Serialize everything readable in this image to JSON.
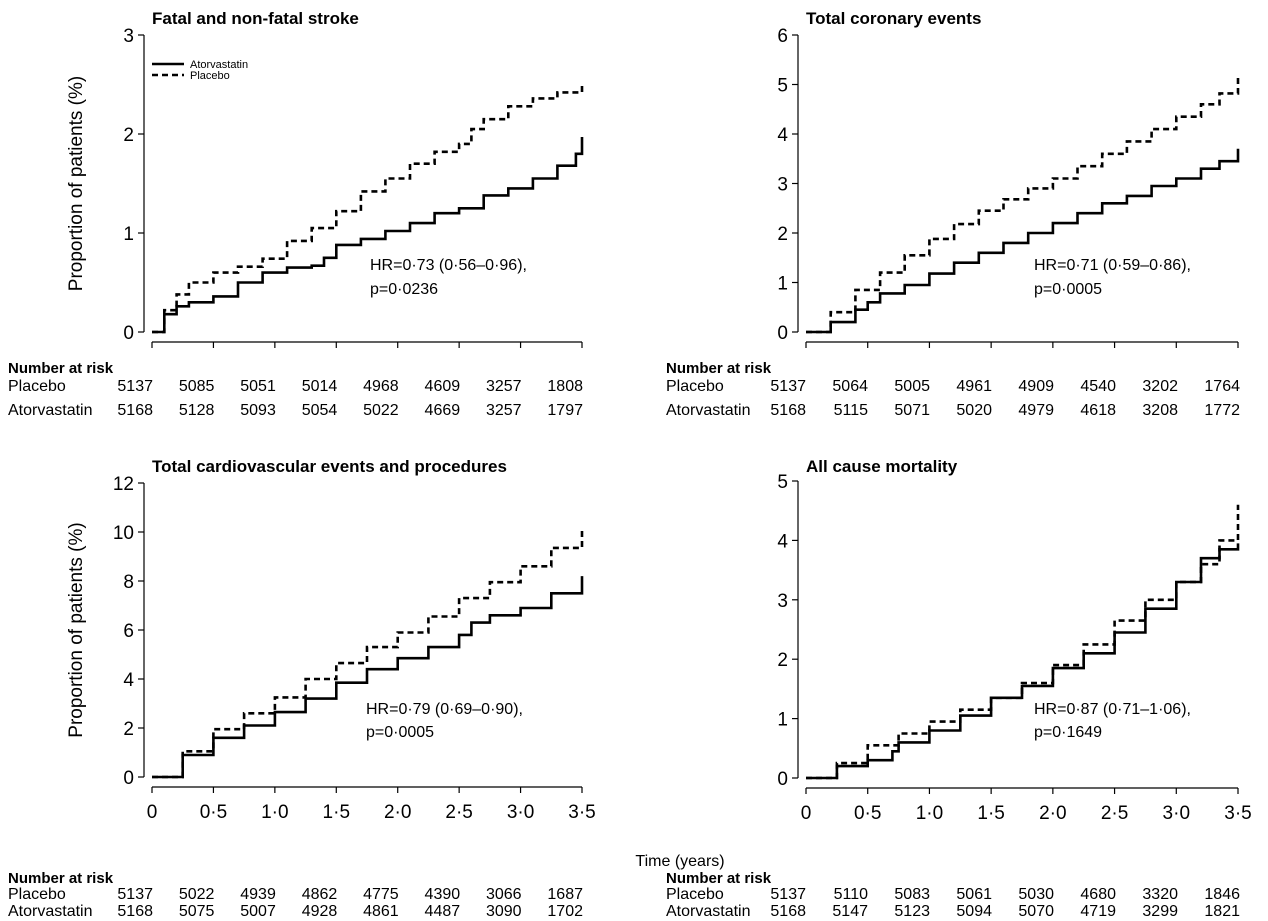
{
  "figure": {
    "x_axis_label": "Time (years)",
    "y_axis_label": "Proportion of patients (%)",
    "legend": {
      "placement": "top-left of first panel",
      "items": [
        {
          "label": "Atorvastatin",
          "style": "solid"
        },
        {
          "label": "Placebo",
          "style": "dashed"
        }
      ]
    },
    "risk_table_title": "Number at risk",
    "risk_row_labels": [
      "Placebo",
      "Atorvastatin"
    ],
    "line_color": "#000000"
  },
  "chart_data": [
    {
      "type": "line",
      "title": "Fatal and non-fatal stroke",
      "ylabel": "Proportion of patients (%)",
      "xlim": [
        0,
        3.5
      ],
      "ylim": [
        0,
        3
      ],
      "yticks": [
        "0",
        "1",
        "2",
        "3"
      ],
      "xticks": [],
      "annotation": [
        "HR=0·73 (0·56–0·96),",
        "p=0·0236"
      ],
      "series": [
        {
          "name": "Atorvastatin",
          "style": "solid",
          "x": [
            0,
            0.1,
            0.2,
            0.3,
            0.5,
            0.7,
            0.9,
            1.1,
            1.3,
            1.4,
            1.5,
            1.7,
            1.9,
            2.1,
            2.3,
            2.5,
            2.7,
            2.9,
            3.1,
            3.3,
            3.45,
            3.5
          ],
          "y": [
            0,
            0.18,
            0.26,
            0.3,
            0.36,
            0.5,
            0.6,
            0.65,
            0.67,
            0.75,
            0.88,
            0.94,
            1.02,
            1.1,
            1.2,
            1.25,
            1.38,
            1.45,
            1.55,
            1.68,
            1.8,
            1.97
          ]
        },
        {
          "name": "Placebo",
          "style": "dashed",
          "x": [
            0,
            0.1,
            0.2,
            0.3,
            0.5,
            0.7,
            0.9,
            1.1,
            1.3,
            1.5,
            1.7,
            1.9,
            2.1,
            2.3,
            2.5,
            2.6,
            2.7,
            2.9,
            3.1,
            3.3,
            3.5
          ],
          "y": [
            0,
            0.22,
            0.38,
            0.5,
            0.6,
            0.66,
            0.74,
            0.92,
            1.05,
            1.22,
            1.42,
            1.55,
            1.7,
            1.82,
            1.9,
            2.05,
            2.15,
            2.28,
            2.36,
            2.42,
            2.5
          ]
        }
      ],
      "risk_table": {
        "Placebo": [
          5137,
          5085,
          5051,
          5014,
          4968,
          4609,
          3257,
          1808
        ],
        "Atorvastatin": [
          5168,
          5128,
          5093,
          5054,
          5022,
          4669,
          3257,
          1797
        ]
      }
    },
    {
      "type": "line",
      "title": "Total coronary events",
      "ylabel": "",
      "xlim": [
        0,
        3.5
      ],
      "ylim": [
        0,
        6
      ],
      "yticks": [
        "0",
        "1",
        "2",
        "3",
        "4",
        "5",
        "6"
      ],
      "xticks": [],
      "annotation": [
        "HR=0·71 (0·59–0·86),",
        "p=0·0005"
      ],
      "series": [
        {
          "name": "Atorvastatin",
          "style": "solid",
          "x": [
            0,
            0.2,
            0.4,
            0.5,
            0.6,
            0.8,
            1.0,
            1.2,
            1.4,
            1.6,
            1.8,
            2.0,
            2.2,
            2.4,
            2.6,
            2.8,
            3.0,
            3.2,
            3.35,
            3.5
          ],
          "y": [
            0,
            0.2,
            0.45,
            0.6,
            0.78,
            0.95,
            1.18,
            1.4,
            1.6,
            1.8,
            2.0,
            2.2,
            2.4,
            2.6,
            2.75,
            2.95,
            3.1,
            3.3,
            3.45,
            3.7
          ]
        },
        {
          "name": "Placebo",
          "style": "dashed",
          "x": [
            0,
            0.2,
            0.4,
            0.6,
            0.8,
            1.0,
            1.2,
            1.4,
            1.6,
            1.8,
            2.0,
            2.2,
            2.4,
            2.6,
            2.8,
            3.0,
            3.2,
            3.35,
            3.5
          ],
          "y": [
            0,
            0.4,
            0.85,
            1.2,
            1.55,
            1.88,
            2.18,
            2.45,
            2.68,
            2.9,
            3.1,
            3.35,
            3.6,
            3.85,
            4.1,
            4.35,
            4.6,
            4.82,
            5.2
          ]
        }
      ],
      "risk_table": {
        "Placebo": [
          5137,
          5064,
          5005,
          4961,
          4909,
          4540,
          3202,
          1764
        ],
        "Atorvastatin": [
          5168,
          5115,
          5071,
          5020,
          4979,
          4618,
          3208,
          1772
        ]
      }
    },
    {
      "type": "line",
      "title": "Total cardiovascular events and procedures",
      "ylabel": "Proportion of patients (%)",
      "xlim": [
        0,
        3.5
      ],
      "ylim": [
        0,
        12
      ],
      "yticks": [
        "0",
        "2",
        "4",
        "6",
        "8",
        "10",
        "12"
      ],
      "xticks": [
        "0",
        "0·5",
        "1·0",
        "1·5",
        "2·0",
        "2·5",
        "3·0",
        "3·5"
      ],
      "annotation": [
        "HR=0·79 (0·69–0·90),",
        "p=0·0005"
      ],
      "series": [
        {
          "name": "Atorvastatin",
          "style": "solid",
          "x": [
            0,
            0.25,
            0.5,
            0.75,
            1.0,
            1.25,
            1.5,
            1.75,
            2.0,
            2.25,
            2.5,
            2.6,
            2.75,
            3.0,
            3.25,
            3.5
          ],
          "y": [
            0,
            0.9,
            1.6,
            2.1,
            2.65,
            3.2,
            3.85,
            4.4,
            4.85,
            5.3,
            5.8,
            6.3,
            6.6,
            6.9,
            7.5,
            8.2
          ]
        },
        {
          "name": "Placebo",
          "style": "dashed",
          "x": [
            0,
            0.25,
            0.5,
            0.75,
            1.0,
            1.25,
            1.5,
            1.75,
            2.0,
            2.25,
            2.5,
            2.75,
            3.0,
            3.25,
            3.5
          ],
          "y": [
            0,
            1.05,
            1.95,
            2.6,
            3.25,
            4.0,
            4.65,
            5.3,
            5.9,
            6.55,
            7.3,
            7.95,
            8.6,
            9.35,
            10.05
          ]
        }
      ],
      "risk_table": {
        "Placebo": [
          5137,
          5022,
          4939,
          4862,
          4775,
          4390,
          3066,
          1687
        ],
        "Atorvastatin": [
          5168,
          5075,
          5007,
          4928,
          4861,
          4487,
          3090,
          1702
        ]
      }
    },
    {
      "type": "line",
      "title": "All cause mortality",
      "ylabel": "",
      "xlim": [
        0,
        3.5
      ],
      "ylim": [
        0,
        5
      ],
      "yticks": [
        "0",
        "1",
        "2",
        "3",
        "4",
        "5"
      ],
      "xticks": [
        "0",
        "0·5",
        "1·0",
        "1·5",
        "2·0",
        "2·5",
        "3·0",
        "3·5"
      ],
      "annotation": [
        "HR=0·87 (0·71–1·06),",
        "p=0·1649"
      ],
      "series": [
        {
          "name": "Atorvastatin",
          "style": "solid",
          "x": [
            0,
            0.25,
            0.5,
            0.7,
            0.75,
            1.0,
            1.25,
            1.5,
            1.75,
            2.0,
            2.25,
            2.5,
            2.75,
            3.0,
            3.2,
            3.35,
            3.5
          ],
          "y": [
            0,
            0.2,
            0.3,
            0.45,
            0.6,
            0.8,
            1.05,
            1.35,
            1.55,
            1.85,
            2.1,
            2.45,
            2.85,
            3.3,
            3.7,
            3.85,
            3.95
          ]
        },
        {
          "name": "Placebo",
          "style": "dashed",
          "x": [
            0,
            0.25,
            0.5,
            0.75,
            1.0,
            1.25,
            1.5,
            1.75,
            2.0,
            2.25,
            2.5,
            2.75,
            3.0,
            3.2,
            3.35,
            3.5
          ],
          "y": [
            0,
            0.25,
            0.55,
            0.75,
            0.95,
            1.15,
            1.35,
            1.6,
            1.9,
            2.25,
            2.65,
            3.0,
            3.3,
            3.6,
            4.0,
            4.6
          ]
        }
      ],
      "risk_table": {
        "Placebo": [
          5137,
          5110,
          5083,
          5061,
          5030,
          4680,
          3320,
          1846
        ],
        "Atorvastatin": [
          5168,
          5147,
          5123,
          5094,
          5070,
          4719,
          3299,
          1821
        ]
      }
    }
  ]
}
